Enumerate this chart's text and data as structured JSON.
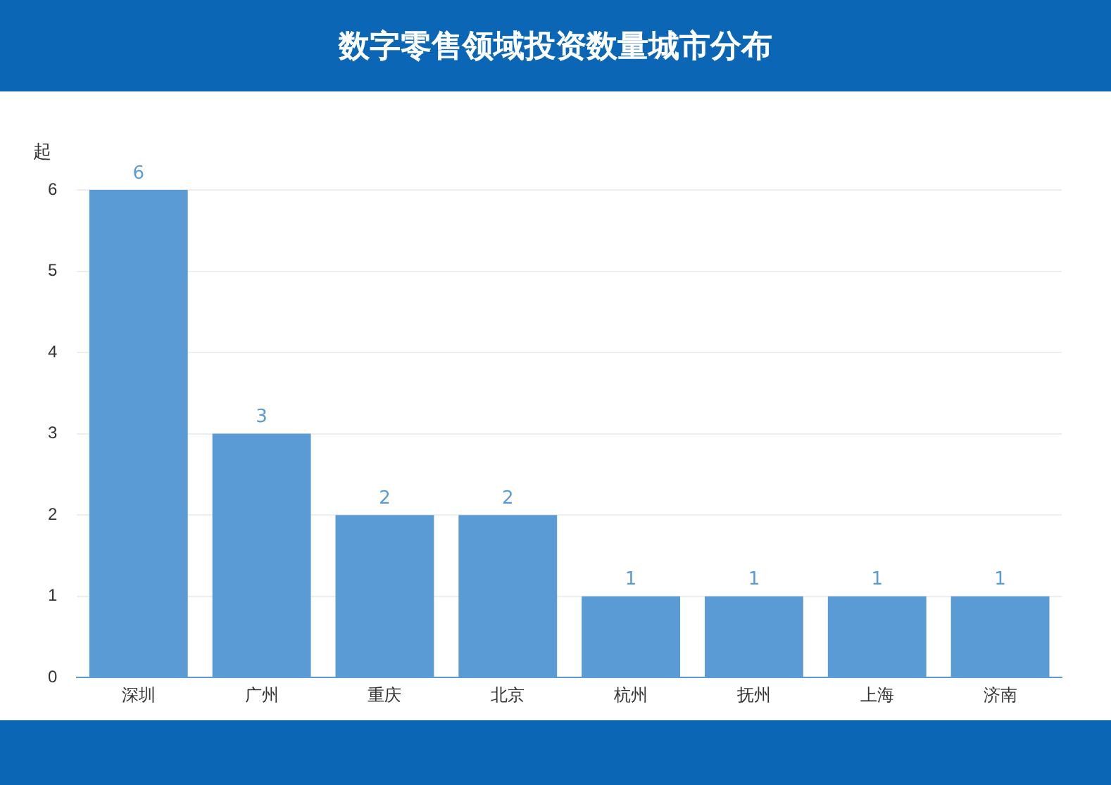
{
  "chart_data": {
    "type": "bar",
    "title": "数字零售领域投资数量城市分布",
    "ylabel": "起",
    "categories": [
      "深圳",
      "广州",
      "重庆",
      "北京",
      "杭州",
      "抚州",
      "上海",
      "济南"
    ],
    "values": [
      6,
      3,
      2,
      2,
      1,
      1,
      1,
      1
    ],
    "color": "#5b9bd5",
    "ylim": [
      0,
      6
    ],
    "yticks": [
      0,
      1,
      2,
      3,
      4,
      5,
      6
    ],
    "grid": "y",
    "data_labels": true,
    "legend": false
  }
}
